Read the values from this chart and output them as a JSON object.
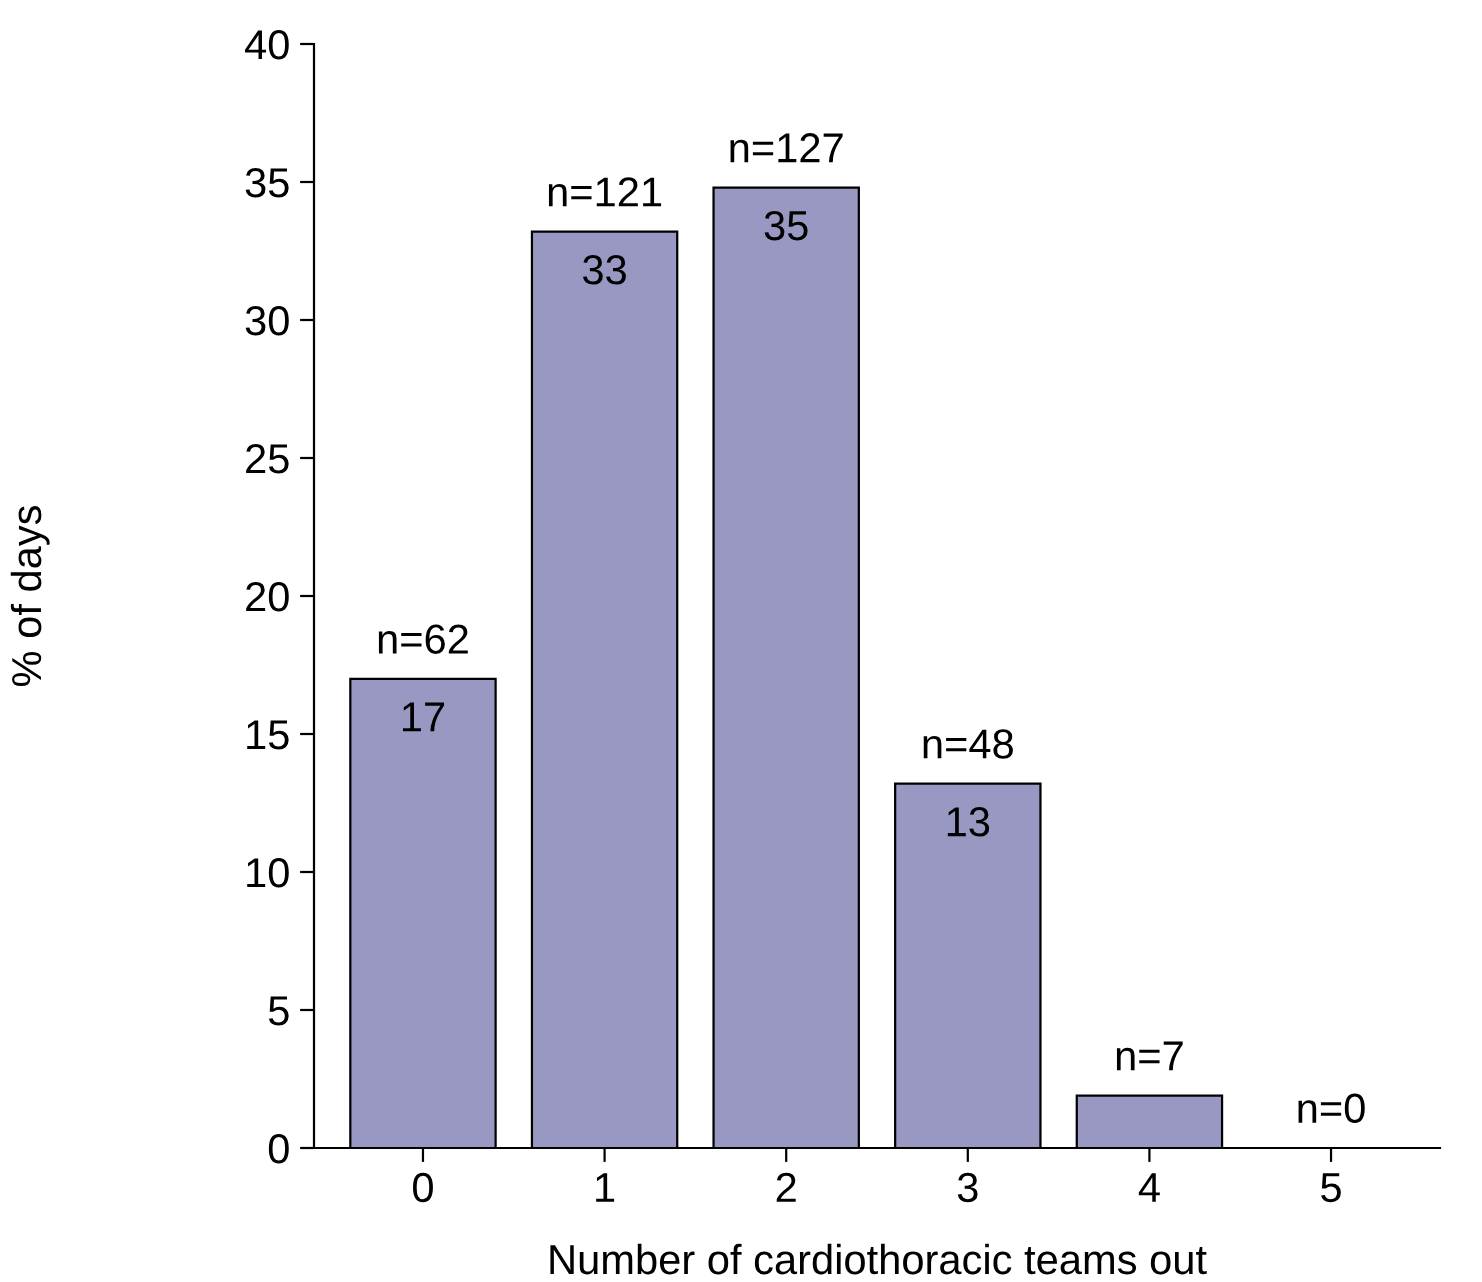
{
  "chart_data": {
    "type": "bar",
    "xlabel": "Number of cardiothoracic teams out",
    "ylabel": "% of days",
    "categories": [
      "0",
      "1",
      "2",
      "3",
      "4",
      "5"
    ],
    "values": [
      17,
      33.2,
      34.8,
      13.2,
      1.9,
      0
    ],
    "value_labels": [
      "17",
      "33",
      "35",
      "13",
      null,
      null
    ],
    "color": "#9898c2",
    "ylim": [
      0,
      40
    ],
    "yticks": [
      0,
      5,
      10,
      15,
      20,
      25,
      30,
      35,
      40
    ],
    "annotations": [
      {
        "text": "n=62",
        "x": "0",
        "y": 17
      },
      {
        "text": "n=121",
        "x": "1",
        "y": 33.2
      },
      {
        "text": "n=127",
        "x": "2",
        "y": 34.8
      },
      {
        "text": "n=48",
        "x": "3",
        "y": 13.2
      },
      {
        "text": "n=7",
        "x": "4",
        "y": 1.9
      },
      {
        "text": "n=0",
        "x": "5",
        "y": 0
      }
    ],
    "grid": false
  }
}
